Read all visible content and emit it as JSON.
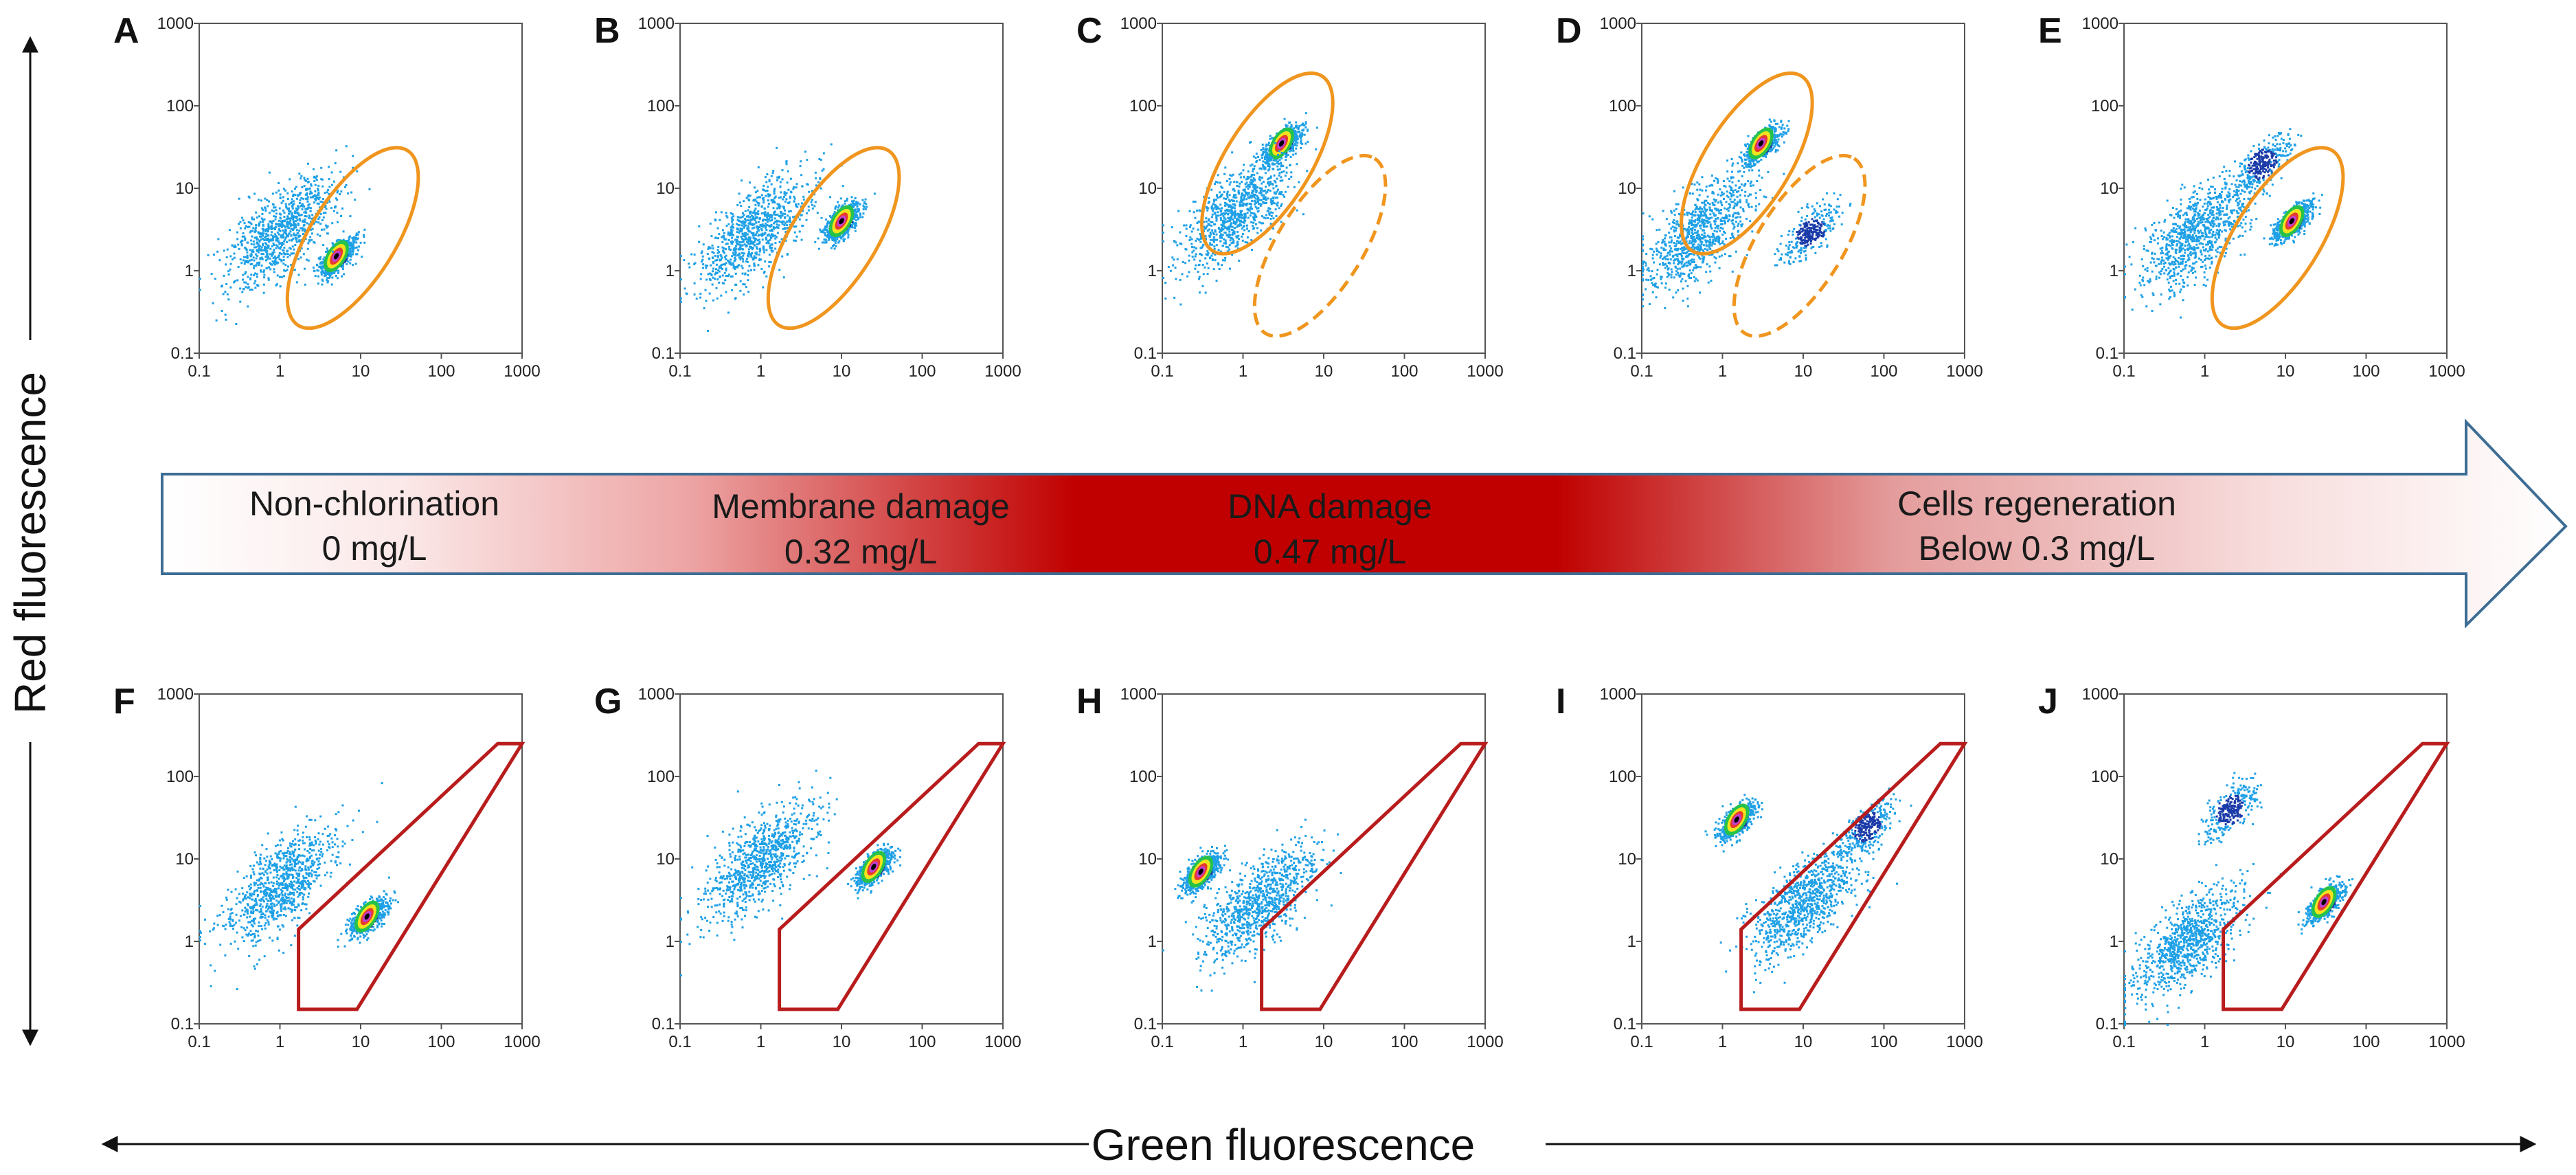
{
  "axes": {
    "x_title": "Green fluorescence",
    "y_title": "Red fluorescence",
    "tick_labels": [
      "0.1",
      "1",
      "10",
      "100",
      "1000"
    ]
  },
  "stages": [
    {
      "title": "Non-chlorination",
      "dose": "0 mg/L"
    },
    {
      "title": "Membrane damage",
      "dose": "0.32 mg/L"
    },
    {
      "title": "DNA damage",
      "dose": "0.47 mg/L"
    },
    {
      "title": "Cells regeneration",
      "dose": "Below 0.3 mg/L"
    }
  ],
  "colors": {
    "ellipse": "#f0951e",
    "gate": "#b81c1c",
    "arrow_dark": "#c00000",
    "arrow_outline": "#3d6d94",
    "scatter_low": "#1ea0e6",
    "scatter_mid": "#1a3aa8"
  },
  "chart_data": [
    {
      "panel": "A",
      "type": "scatter",
      "xscale": "log",
      "yscale": "log",
      "xlim": [
        0.1,
        1000
      ],
      "ylim": [
        0.1,
        1000
      ],
      "populations": [
        {
          "x": 5,
          "y": 1.5,
          "density": "high"
        },
        {
          "x": 1,
          "y": 3,
          "density": "low"
        }
      ],
      "gates": [
        {
          "shape": "ellipse",
          "style": "solid",
          "center": [
            8,
            2.5
          ]
        }
      ]
    },
    {
      "panel": "B",
      "type": "scatter",
      "xscale": "log",
      "yscale": "log",
      "xlim": [
        0.1,
        1000
      ],
      "ylim": [
        0.1,
        1000
      ],
      "populations": [
        {
          "x": 10,
          "y": 4,
          "density": "high"
        },
        {
          "x": 0.8,
          "y": 3,
          "density": "low"
        }
      ],
      "gates": [
        {
          "shape": "ellipse",
          "style": "solid",
          "center": [
            8,
            2.5
          ]
        }
      ]
    },
    {
      "panel": "C",
      "type": "scatter",
      "xscale": "log",
      "yscale": "log",
      "xlim": [
        0.1,
        1000
      ],
      "ylim": [
        0.1,
        1000
      ],
      "populations": [
        {
          "x": 3,
          "y": 35,
          "density": "high"
        },
        {
          "x": 0.8,
          "y": 5,
          "density": "low"
        }
      ],
      "gates": [
        {
          "shape": "ellipse",
          "style": "solid",
          "center": [
            2,
            20
          ]
        },
        {
          "shape": "ellipse",
          "style": "dashed",
          "center": [
            9,
            2
          ]
        }
      ]
    },
    {
      "panel": "D",
      "type": "scatter",
      "xscale": "log",
      "yscale": "log",
      "xlim": [
        0.1,
        1000
      ],
      "ylim": [
        0.1,
        1000
      ],
      "populations": [
        {
          "x": 3,
          "y": 35,
          "density": "high"
        },
        {
          "x": 12,
          "y": 3,
          "density": "medium"
        },
        {
          "x": 0.5,
          "y": 3,
          "density": "low"
        }
      ],
      "gates": [
        {
          "shape": "ellipse",
          "style": "solid",
          "center": [
            2,
            20
          ]
        },
        {
          "shape": "ellipse",
          "style": "dashed",
          "center": [
            9,
            2
          ]
        }
      ]
    },
    {
      "panel": "E",
      "type": "scatter",
      "xscale": "log",
      "yscale": "log",
      "xlim": [
        0.1,
        1000
      ],
      "ylim": [
        0.1,
        1000
      ],
      "populations": [
        {
          "x": 12,
          "y": 4,
          "density": "high"
        },
        {
          "x": 5,
          "y": 20,
          "density": "medium"
        },
        {
          "x": 0.8,
          "y": 3,
          "density": "low"
        }
      ],
      "gates": [
        {
          "shape": "ellipse",
          "style": "solid",
          "center": [
            8,
            2.5
          ]
        }
      ]
    },
    {
      "panel": "F",
      "type": "scatter",
      "xscale": "log",
      "yscale": "log",
      "xlim": [
        0.1,
        1000
      ],
      "ylim": [
        0.1,
        1000
      ],
      "populations": [
        {
          "x": 12,
          "y": 2,
          "density": "high"
        },
        {
          "x": 1,
          "y": 5,
          "density": "low"
        }
      ],
      "gates": [
        {
          "shape": "polygon",
          "vertices": [
            [
              1.7,
              0.15
            ],
            [
              9,
              0.15
            ],
            [
              1000,
              250
            ],
            [
              500,
              250
            ],
            [
              1.7,
              1.4
            ]
          ]
        }
      ]
    },
    {
      "panel": "G",
      "type": "scatter",
      "xscale": "log",
      "yscale": "log",
      "xlim": [
        0.1,
        1000
      ],
      "ylim": [
        0.1,
        1000
      ],
      "populations": [
        {
          "x": 25,
          "y": 8,
          "density": "high"
        },
        {
          "x": 1,
          "y": 10,
          "density": "low"
        }
      ],
      "gates": [
        {
          "shape": "polygon",
          "vertices": [
            [
              1.7,
              0.15
            ],
            [
              9,
              0.15
            ],
            [
              1000,
              250
            ],
            [
              500,
              250
            ],
            [
              1.7,
              1.4
            ]
          ]
        }
      ]
    },
    {
      "panel": "H",
      "type": "scatter",
      "xscale": "log",
      "yscale": "log",
      "xlim": [
        0.1,
        1000
      ],
      "ylim": [
        0.1,
        1000
      ],
      "populations": [
        {
          "x": 0.3,
          "y": 7,
          "density": "high"
        },
        {
          "x": 1.5,
          "y": 3,
          "density": "low"
        }
      ],
      "gates": [
        {
          "shape": "polygon",
          "vertices": [
            [
              1.7,
              0.15
            ],
            [
              9,
              0.15
            ],
            [
              1000,
              250
            ],
            [
              500,
              250
            ],
            [
              1.7,
              1.4
            ]
          ]
        }
      ]
    },
    {
      "panel": "I",
      "type": "scatter",
      "xscale": "log",
      "yscale": "log",
      "xlim": [
        0.1,
        1000
      ],
      "ylim": [
        0.1,
        1000
      ],
      "populations": [
        {
          "x": 1.5,
          "y": 30,
          "density": "high"
        },
        {
          "x": 60,
          "y": 25,
          "density": "medium"
        },
        {
          "x": 10,
          "y": 3,
          "density": "low"
        }
      ],
      "gates": [
        {
          "shape": "polygon",
          "vertices": [
            [
              1.7,
              0.15
            ],
            [
              9,
              0.15
            ],
            [
              1000,
              250
            ],
            [
              500,
              250
            ],
            [
              1.7,
              1.4
            ]
          ]
        }
      ]
    },
    {
      "panel": "J",
      "type": "scatter",
      "xscale": "log",
      "yscale": "log",
      "xlim": [
        0.1,
        1000
      ],
      "ylim": [
        0.1,
        1000
      ],
      "populations": [
        {
          "x": 30,
          "y": 3,
          "density": "high"
        },
        {
          "x": 2,
          "y": 40,
          "density": "medium"
        },
        {
          "x": 0.6,
          "y": 1,
          "density": "low"
        }
      ],
      "gates": [
        {
          "shape": "polygon",
          "vertices": [
            [
              1.7,
              0.15
            ],
            [
              9,
              0.15
            ],
            [
              1000,
              250
            ],
            [
              500,
              250
            ],
            [
              1.7,
              1.4
            ]
          ]
        }
      ]
    }
  ]
}
